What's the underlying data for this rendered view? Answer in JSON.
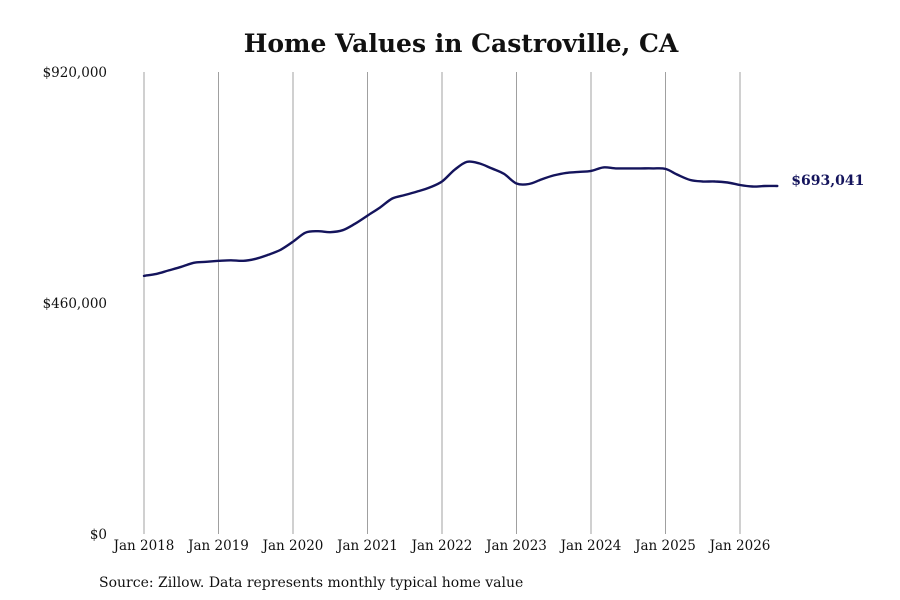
{
  "chart_data": {
    "type": "line",
    "title": "Home Values in Castroville, CA",
    "source": "Source: Zillow. Data represents monthly typical home value",
    "ylim": [
      0,
      920000
    ],
    "y_ticks": [
      {
        "value": 920000,
        "label": "$920,000"
      },
      {
        "value": 460000,
        "label": "$460,000"
      },
      {
        "value": 0,
        "label": "$0"
      }
    ],
    "x_ticks": [
      {
        "date": "2018-01",
        "label": "Jan 2018"
      },
      {
        "date": "2019-01",
        "label": "Jan 2019"
      },
      {
        "date": "2020-01",
        "label": "Jan 2020"
      },
      {
        "date": "2021-01",
        "label": "Jan 2021"
      },
      {
        "date": "2022-01",
        "label": "Jan 2022"
      },
      {
        "date": "2023-01",
        "label": "Jan 2023"
      },
      {
        "date": "2024-01",
        "label": "Jan 2024"
      },
      {
        "date": "2025-01",
        "label": "Jan 2025"
      },
      {
        "date": "2026-01",
        "label": "Jan 2026"
      }
    ],
    "grid": "vertical",
    "line_color": "#14145c",
    "end_label": "$693,041",
    "series": [
      {
        "x": [
          "2018-01",
          "2018-03",
          "2018-05",
          "2018-07",
          "2018-09",
          "2018-11",
          "2019-01",
          "2019-03",
          "2019-05",
          "2019-07",
          "2019-09",
          "2019-11",
          "2020-01",
          "2020-03",
          "2020-05",
          "2020-07",
          "2020-09",
          "2020-11",
          "2021-01",
          "2021-03",
          "2021-05",
          "2021-07",
          "2021-09",
          "2021-11",
          "2022-01",
          "2022-03",
          "2022-05",
          "2022-07",
          "2022-09",
          "2022-11",
          "2023-01",
          "2023-03",
          "2023-05",
          "2023-07",
          "2023-09",
          "2023-11",
          "2024-01",
          "2024-03",
          "2024-05",
          "2024-07",
          "2024-09",
          "2024-11",
          "2025-01",
          "2025-03",
          "2025-05",
          "2025-07",
          "2025-09",
          "2025-11",
          "2026-01",
          "2026-03",
          "2026-05",
          "2026-07"
        ],
        "values": [
          514000,
          518000,
          525000,
          532000,
          540000,
          542000,
          544000,
          545000,
          544000,
          548000,
          556000,
          566000,
          582000,
          600000,
          603000,
          601000,
          605000,
          618000,
          634000,
          650000,
          668000,
          675000,
          682000,
          690000,
          702000,
          725000,
          741000,
          738000,
          728000,
          717000,
          698000,
          697000,
          706000,
          714000,
          719000,
          721000,
          723000,
          730000,
          728000,
          728000,
          728000,
          728000,
          727000,
          715000,
          705000,
          702000,
          702000,
          700000,
          695000,
          692000,
          693000,
          693041
        ]
      }
    ]
  }
}
